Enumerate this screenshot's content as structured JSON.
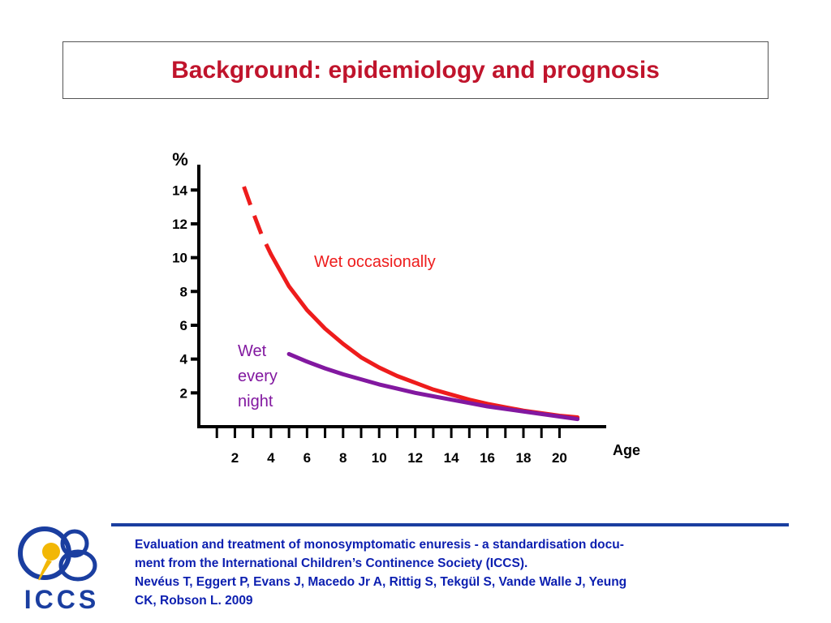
{
  "slide": {
    "title": "Background: epidemiology and prognosis"
  },
  "chart_data": {
    "type": "line",
    "ylabel": "%",
    "xlabel": "Age",
    "y_ticks": [
      2,
      4,
      6,
      8,
      10,
      12,
      14
    ],
    "x_ticks": [
      2,
      4,
      6,
      8,
      10,
      12,
      14,
      16,
      18,
      20
    ],
    "ylim": [
      0,
      15.5
    ],
    "xlim": [
      0,
      22.5
    ],
    "grid": false,
    "series": [
      {
        "name": "Wet occasionally",
        "color": "#ee1c1c",
        "dashed_x_range": [
          2.5,
          4.0
        ],
        "x": [
          2.5,
          3.0,
          3.5,
          4.0,
          5.0,
          6.0,
          7.0,
          8.0,
          9.0,
          10.0,
          11.0,
          12.0,
          13.0,
          14.0,
          15.0,
          16.0,
          17.0,
          18.0,
          19.0,
          20.0,
          21.0
        ],
        "y": [
          14.2,
          12.7,
          11.3,
          10.2,
          8.3,
          6.9,
          5.8,
          4.9,
          4.1,
          3.5,
          3.0,
          2.6,
          2.2,
          1.9,
          1.6,
          1.35,
          1.15,
          0.95,
          0.8,
          0.65,
          0.55
        ]
      },
      {
        "name": "Wet every night",
        "label_lines": [
          "Wet",
          "every",
          "night"
        ],
        "color": "#8218a0",
        "x": [
          5.0,
          6.0,
          7.0,
          8.0,
          9.0,
          10.0,
          11.0,
          12.0,
          13.0,
          14.0,
          15.0,
          16.0,
          17.0,
          18.0,
          19.0,
          20.0,
          21.0
        ],
        "y": [
          4.3,
          3.85,
          3.45,
          3.1,
          2.8,
          2.5,
          2.25,
          2.0,
          1.8,
          1.6,
          1.4,
          1.2,
          1.05,
          0.9,
          0.75,
          0.6,
          0.45
        ]
      }
    ]
  },
  "footer": {
    "logo_text": "ICCS",
    "citation_lines": [
      "Evaluation and treatment of monosymptomatic enuresis - a standardisation docu-",
      "ment from the International Children’s Continence Society (ICCS).",
      "Nevéus T, Eggert P, Evans J, Macedo Jr A, Rittig S, Tekgül S, Vande Walle J, Yeung",
      "CK, Robson L. 2009"
    ],
    "brand_color": "#1a3ea0"
  }
}
